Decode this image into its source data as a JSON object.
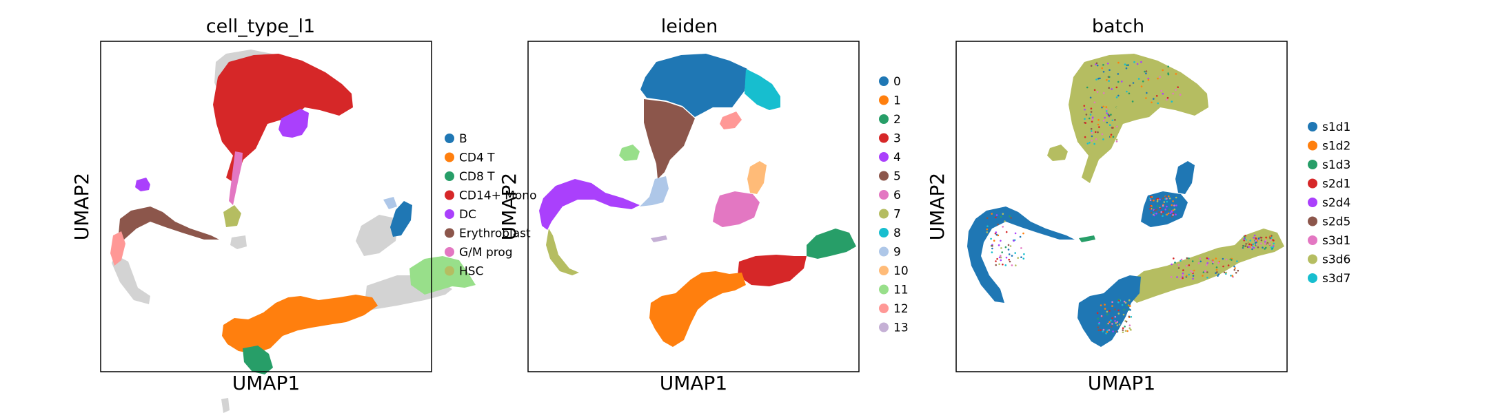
{
  "chart_data": [
    {
      "type": "scatter",
      "title": "cell_type_l1",
      "xlabel": "UMAP1",
      "ylabel": "UMAP2",
      "grid": false,
      "legend": "right",
      "series": [
        {
          "name": "B",
          "color": "#1f77b4"
        },
        {
          "name": "CD4 T",
          "color": "#ff7f0e"
        },
        {
          "name": "CD8 T",
          "color": "#279e68"
        },
        {
          "name": "CD14+ Mono",
          "color": "#d62728"
        },
        {
          "name": "DC",
          "color": "#aa40fc"
        },
        {
          "name": "Erythroblast",
          "color": "#8c564b"
        },
        {
          "name": "G/M prog",
          "color": "#e377c2"
        },
        {
          "name": "HSC",
          "color": "#b5bd61"
        }
      ],
      "unlabeled_color": "#d3d3d3"
    },
    {
      "type": "scatter",
      "title": "leiden",
      "xlabel": "UMAP1",
      "ylabel": "UMAP2",
      "grid": false,
      "legend": "right",
      "series": [
        {
          "name": "0",
          "color": "#1f77b4"
        },
        {
          "name": "1",
          "color": "#ff7f0e"
        },
        {
          "name": "2",
          "color": "#279e68"
        },
        {
          "name": "3",
          "color": "#d62728"
        },
        {
          "name": "4",
          "color": "#aa40fc"
        },
        {
          "name": "5",
          "color": "#8c564b"
        },
        {
          "name": "6",
          "color": "#e377c2"
        },
        {
          "name": "7",
          "color": "#b5bd61"
        },
        {
          "name": "8",
          "color": "#17becf"
        },
        {
          "name": "9",
          "color": "#aec7e8"
        },
        {
          "name": "10",
          "color": "#ffbb78"
        },
        {
          "name": "11",
          "color": "#98df8a"
        },
        {
          "name": "12",
          "color": "#ff9896"
        },
        {
          "name": "13",
          "color": "#c5b0d5"
        }
      ]
    },
    {
      "type": "scatter",
      "title": "batch",
      "xlabel": "UMAP1",
      "ylabel": "UMAP2",
      "grid": false,
      "legend": "right",
      "series": [
        {
          "name": "s1d1",
          "color": "#1f77b4"
        },
        {
          "name": "s1d2",
          "color": "#ff7f0e"
        },
        {
          "name": "s1d3",
          "color": "#279e68"
        },
        {
          "name": "s2d1",
          "color": "#d62728"
        },
        {
          "name": "s2d4",
          "color": "#aa40fc"
        },
        {
          "name": "s2d5",
          "color": "#8c564b"
        },
        {
          "name": "s3d1",
          "color": "#e377c2"
        },
        {
          "name": "s3d6",
          "color": "#b5bd61"
        },
        {
          "name": "s3d7",
          "color": "#17becf"
        }
      ]
    }
  ]
}
